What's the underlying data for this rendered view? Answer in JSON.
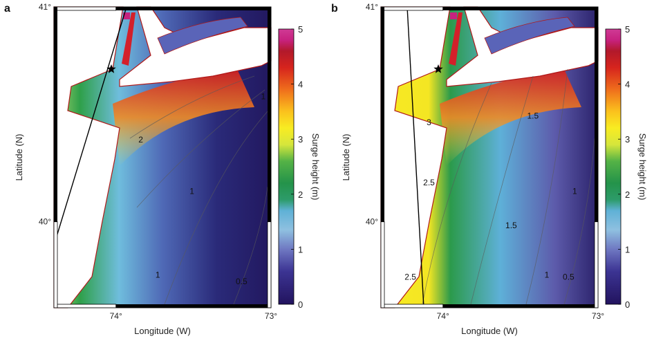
{
  "chart_data": [
    {
      "type": "heatmap",
      "panel_label": "a",
      "xlabel": "Longitude (W)",
      "ylabel": "Latitude (N)",
      "x_ticks": [
        "74°",
        "73°"
      ],
      "y_ticks": [
        "41°",
        "40°"
      ],
      "xlim": [
        74.4,
        73.0
      ],
      "ylim": [
        39.6,
        41.0
      ],
      "colorbar": {
        "label": "Surge height (m)",
        "ticks": [
          "0",
          "1",
          "2",
          "3",
          "4",
          "5"
        ],
        "range": [
          0,
          5
        ]
      },
      "contour_labels": [
        {
          "text": "1",
          "lon": 73.05,
          "lat": 40.57,
          "value": 1
        },
        {
          "text": "2",
          "lon": 73.84,
          "lat": 40.37,
          "value": 2
        },
        {
          "text": "1",
          "lon": 73.51,
          "lat": 40.13,
          "value": 1
        },
        {
          "text": "1",
          "lon": 73.73,
          "lat": 39.74,
          "value": 1
        },
        {
          "text": "0.5",
          "lon": 73.19,
          "lat": 39.71,
          "value": 0.5
        }
      ]
    },
    {
      "type": "heatmap",
      "panel_label": "b",
      "xlabel": "Longitude (W)",
      "ylabel": "Latitude (N)",
      "x_ticks": [
        "74°",
        "73°"
      ],
      "y_ticks": [
        "41°",
        "40°"
      ],
      "xlim": [
        74.4,
        73.0
      ],
      "ylim": [
        39.6,
        41.0
      ],
      "colorbar": {
        "label": "Surge height (m)",
        "ticks": [
          "0",
          "1",
          "2",
          "3",
          "4",
          "5"
        ],
        "range": [
          0,
          5
        ]
      },
      "contour_labels": [
        {
          "text": "3",
          "lon": 74.09,
          "lat": 40.45,
          "value": 3
        },
        {
          "text": "1.5",
          "lon": 73.42,
          "lat": 40.48,
          "value": 1.5
        },
        {
          "text": "2.5",
          "lon": 74.09,
          "lat": 40.17,
          "value": 2.5
        },
        {
          "text": "1",
          "lon": 73.15,
          "lat": 40.13,
          "value": 1
        },
        {
          "text": "1.5",
          "lon": 73.56,
          "lat": 39.97,
          "value": 1.5
        },
        {
          "text": "1",
          "lon": 73.33,
          "lat": 39.74,
          "value": 1
        },
        {
          "text": "2.5",
          "lon": 74.21,
          "lat": 39.73,
          "value": 2.5
        },
        {
          "text": "0.5",
          "lon": 73.19,
          "lat": 39.73,
          "value": 0.5
        }
      ]
    }
  ]
}
